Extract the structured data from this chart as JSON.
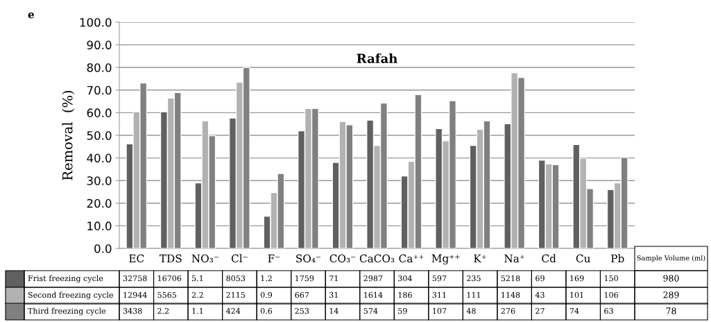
{
  "chart_data": {
    "type": "bar",
    "title": "Rafah",
    "ylabel": "Removal  (%)",
    "categories": [
      "EC",
      "TDS",
      "NO₃⁻",
      "Cl⁻",
      "F⁻",
      "SO₄⁻",
      "CO₃⁻",
      "CaCO₃",
      "Ca⁺⁺",
      "Mg⁺⁺",
      "K⁺",
      "Na⁺",
      "Cd",
      "Cu",
      "Pb"
    ],
    "series": [
      {
        "name": "Frist freezing cycle",
        "color": "#606060",
        "values": [
          46.2,
          60.4,
          28.9,
          57.6,
          14.2,
          51.9,
          38.0,
          56.7,
          32.0,
          52.9,
          45.5,
          55.1,
          39.0,
          45.9,
          26.0
        ]
      },
      {
        "name": "Second freezing cycle",
        "color": "#b2b2b2",
        "values": [
          60.4,
          66.4,
          56.4,
          73.4,
          24.6,
          61.8,
          56.1,
          45.5,
          38.4,
          47.6,
          52.6,
          77.6,
          37.4,
          39.8,
          28.9
        ]
      },
      {
        "name": "Third freezing cycle",
        "color": "#808080",
        "values": [
          73.1,
          68.9,
          49.8,
          79.9,
          33.1,
          61.8,
          54.6,
          64.2,
          68.0,
          65.3,
          56.4,
          75.5,
          37.0,
          26.4,
          40.2
        ]
      }
    ],
    "ylim": [
      0,
      100
    ],
    "yticks": [
      {
        "value": 0,
        "label": "0.0"
      },
      {
        "value": 10,
        "label": "10.0"
      },
      {
        "value": 20,
        "label": "20.0"
      },
      {
        "value": 30,
        "label": "30.0"
      },
      {
        "value": 40,
        "label": "40.0"
      },
      {
        "value": 50,
        "label": "50.0"
      },
      {
        "value": 60,
        "label": "60.0"
      },
      {
        "value": 70,
        "label": "70.0"
      },
      {
        "value": 80,
        "label": "80.0"
      },
      {
        "value": 90,
        "label": "90.0"
      },
      {
        "value": 100,
        "label": "100.0"
      }
    ],
    "grid": "y",
    "legend": "bottom",
    "annotations": [
      "e",
      "Sample Volume (ml)",
      "32758",
      "16706",
      "5.1",
      "8053",
      "1.2",
      "1759",
      "71",
      "2987",
      "304",
      "597",
      "235",
      "5218",
      "69",
      "169",
      "150",
      "980",
      "12944",
      "5565",
      "2.2",
      "2115",
      "0.9",
      "667",
      "31",
      "1614",
      "186",
      "311",
      "111",
      "1148",
      "43",
      "101",
      "106",
      "289",
      "3438",
      "2.2",
      "1.1",
      "424",
      "0.6",
      "253",
      "14",
      "574",
      "59",
      "107",
      "48",
      "276",
      "27",
      "74",
      "63",
      "78"
    ]
  }
}
